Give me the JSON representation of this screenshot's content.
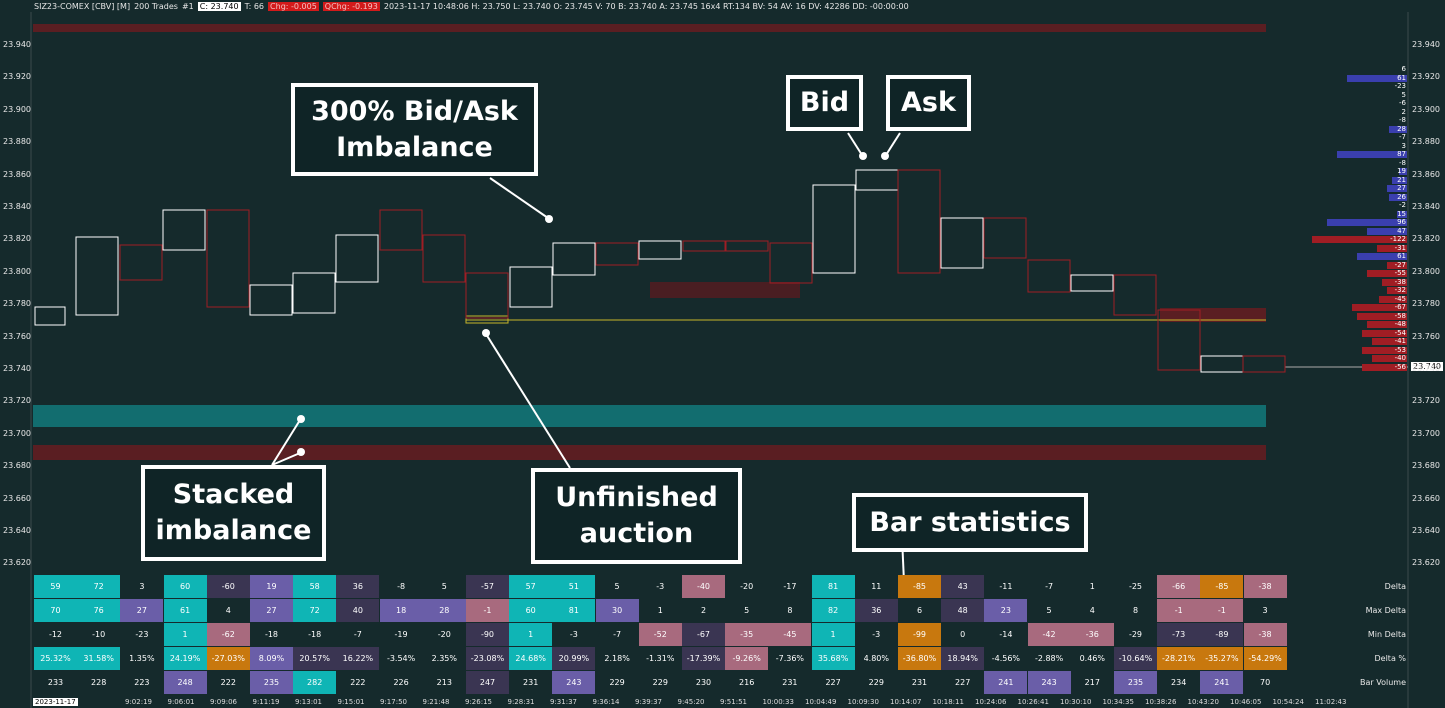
{
  "header": {
    "symbol": "SIZ23-COMEX [CBV] [M]",
    "trades": "200 Trades",
    "num": "#1",
    "c_label": "C: 23.740",
    "t_label": "T: 66",
    "chg": "Chg: -0.005",
    "qchg": "QChg: -0.193",
    "info": "2023-11-17 10:48:06 H: 23.750 L: 23.740 O: 23.745 V: 70 B: 23.740 A: 23.745 16x4 RT:134 BV: 54 AV: 16 DV: 42286 DD: -00:00:00"
  },
  "y_axis": [
    "23.940",
    "23.920",
    "23.900",
    "23.880",
    "23.860",
    "23.840",
    "23.820",
    "23.800",
    "23.780",
    "23.760",
    "23.740",
    "23.720",
    "23.700",
    "23.680",
    "23.660",
    "23.640",
    "23.620"
  ],
  "current_price": "23.740",
  "callouts": {
    "imbalance": [
      "300% Bid/Ask",
      "Imbalance"
    ],
    "bid": "Bid",
    "ask": "Ask",
    "stacked": [
      "Stacked",
      "imbalance"
    ],
    "unfinished": [
      "Unfinished",
      "auction"
    ],
    "bar_stats": "Bar statistics"
  },
  "stat_labels": [
    "Delta",
    "Max Delta",
    "Min Delta",
    "Delta %",
    "Bar Volume"
  ],
  "stats": {
    "delta": [
      "59",
      "72",
      "3",
      "60",
      "-60",
      "19",
      "58",
      "36",
      "-8",
      "5",
      "-57",
      "57",
      "51",
      "5",
      "-3",
      "-40",
      "-20",
      "-17",
      "81",
      "11",
      "-85",
      "43",
      "-11",
      "-7",
      "1",
      "-25",
      "-66",
      "-85",
      "-38"
    ],
    "max_delta": [
      "70",
      "76",
      "27",
      "61",
      "4",
      "27",
      "72",
      "40",
      "18",
      "28",
      "-1",
      "60",
      "81",
      "30",
      "1",
      "2",
      "5",
      "8",
      "82",
      "36",
      "6",
      "48",
      "23",
      "5",
      "4",
      "8",
      "-1",
      "-1",
      "3"
    ],
    "min_delta": [
      "-12",
      "-10",
      "-23",
      "1",
      "-62",
      "-18",
      "-18",
      "-7",
      "-19",
      "-20",
      "-90",
      "1",
      "-3",
      "-7",
      "-52",
      "-67",
      "-35",
      "-45",
      "1",
      "-3",
      "-99",
      "0",
      "-14",
      "-42",
      "-36",
      "-29",
      "-73",
      "-89",
      "-38"
    ],
    "delta_pct": [
      "25.32%",
      "31.58%",
      "1.35%",
      "24.19%",
      "-27.03%",
      "8.09%",
      "20.57%",
      "16.22%",
      "-3.54%",
      "2.35%",
      "-23.08%",
      "24.68%",
      "20.99%",
      "2.18%",
      "-1.31%",
      "-17.39%",
      "-9.26%",
      "-7.36%",
      "35.68%",
      "4.80%",
      "-36.80%",
      "18.94%",
      "-4.56%",
      "-2.88%",
      "0.46%",
      "-10.64%",
      "-28.21%",
      "-35.27%",
      "-54.29%"
    ],
    "volume": [
      "233",
      "228",
      "223",
      "248",
      "222",
      "235",
      "282",
      "222",
      "226",
      "213",
      "247",
      "231",
      "243",
      "229",
      "229",
      "230",
      "216",
      "231",
      "227",
      "229",
      "231",
      "227",
      "241",
      "243",
      "217",
      "235",
      "234",
      "241",
      "70"
    ]
  },
  "colors": {
    "delta": [
      "teal",
      "teal",
      "none",
      "teal",
      "dark",
      "purple",
      "teal",
      "dark",
      "none",
      "none",
      "dark",
      "teal",
      "teal",
      "none",
      "none",
      "pink",
      "none",
      "none",
      "teal",
      "none",
      "orange",
      "dark",
      "none",
      "none",
      "none",
      "none",
      "pink",
      "orange",
      "pink"
    ],
    "max_delta": [
      "teal",
      "teal",
      "purple",
      "teal",
      "none",
      "purple",
      "teal",
      "dark",
      "purple",
      "purple",
      "pink",
      "teal",
      "teal",
      "purple",
      "none",
      "none",
      "none",
      "none",
      "teal",
      "dark",
      "none",
      "dark",
      "purple",
      "none",
      "none",
      "none",
      "pink",
      "pink",
      "none"
    ],
    "min_delta": [
      "none",
      "none",
      "none",
      "teal",
      "pink",
      "none",
      "none",
      "none",
      "none",
      "none",
      "dark",
      "teal",
      "none",
      "none",
      "pink",
      "dark",
      "pink",
      "pink",
      "teal",
      "none",
      "orange",
      "none",
      "none",
      "pink",
      "pink",
      "none",
      "dark",
      "dark",
      "pink"
    ],
    "delta_pct": [
      "teal",
      "teal",
      "none",
      "teal",
      "orange",
      "purple",
      "dark",
      "dark",
      "none",
      "none",
      "dark",
      "teal",
      "dark",
      "none",
      "none",
      "dark",
      "pink",
      "none",
      "teal",
      "none",
      "orange",
      "dark",
      "none",
      "none",
      "none",
      "dark",
      "orange",
      "orange",
      "orange"
    ],
    "volume": [
      "none",
      "none",
      "none",
      "purple",
      "none",
      "purple",
      "teal",
      "none",
      "none",
      "none",
      "dark",
      "none",
      "purple",
      "none",
      "none",
      "none",
      "none",
      "none",
      "none",
      "none",
      "none",
      "none",
      "purple",
      "purple",
      "none",
      "purple",
      "none",
      "purple",
      "none"
    ]
  },
  "times": [
    "2023-11-17",
    "9:02:19",
    "9:06:01",
    "9:09:06",
    "9:11:19",
    "9:13:01",
    "9:15:01",
    "9:17:50",
    "9:21:48",
    "9:26:15",
    "9:28:31",
    "9:31:37",
    "9:36:14",
    "9:39:37",
    "9:45:20",
    "9:51:51",
    "10:00:33",
    "10:04:49",
    "10:09:30",
    "10:14:07",
    "10:18:11",
    "10:24:06",
    "10:26:41",
    "10:30:10",
    "10:34:35",
    "10:38:26",
    "10:43:20",
    "10:46:05",
    "10:54:24",
    "11:02:43"
  ],
  "dom": {
    "values": [
      "6",
      "61",
      "-23",
      "5",
      "-6",
      "2",
      "-8",
      "28",
      "-7",
      "3",
      "87",
      "-8",
      "19",
      "21",
      "27",
      "26",
      "-2",
      "15",
      "96",
      "47",
      "-122",
      "-31",
      "61",
      "-27",
      "-55",
      "-38",
      "-32",
      "-45",
      "-67",
      "-58",
      "-48",
      "-54",
      "-41",
      "-53",
      "-40",
      "-56"
    ],
    "widths": [
      0,
      60,
      0,
      0,
      0,
      0,
      0,
      18,
      0,
      0,
      70,
      0,
      8,
      15,
      20,
      18,
      0,
      10,
      80,
      40,
      95,
      30,
      50,
      20,
      40,
      25,
      20,
      28,
      55,
      50,
      40,
      45,
      35,
      45,
      35,
      45
    ]
  }
}
